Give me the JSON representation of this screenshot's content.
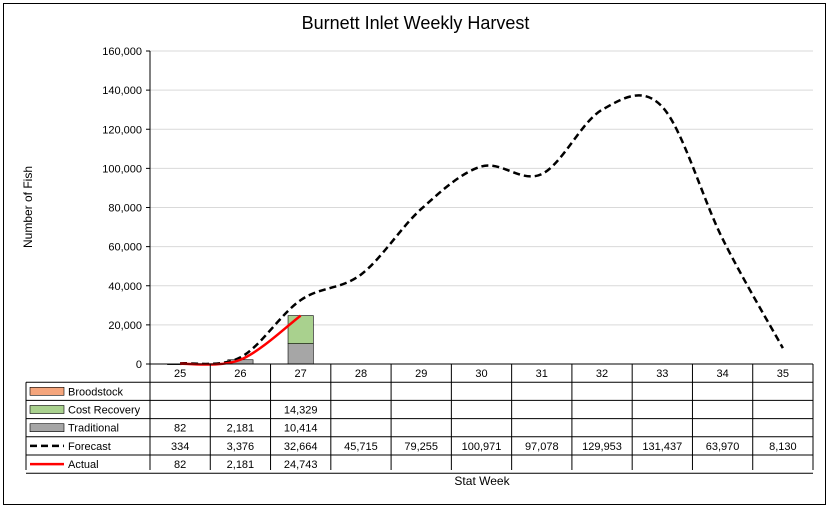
{
  "chart_data": {
    "type": "bar",
    "title": "Burnett Inlet Weekly Harvest",
    "xlabel": "Stat Week",
    "ylabel": "Number of Fish",
    "ylim": [
      0,
      160000
    ],
    "yticks": [
      "0",
      "20,000",
      "40,000",
      "60,000",
      "80,000",
      "100,000",
      "120,000",
      "140,000",
      "160,000"
    ],
    "grid": true,
    "categories": [
      "25",
      "26",
      "27",
      "28",
      "29",
      "30",
      "31",
      "32",
      "33",
      "34",
      "35"
    ],
    "series": [
      {
        "name": "Broodstock",
        "kind": "stacked-bar",
        "color": "#f4a57c",
        "values": [
          null,
          null,
          null,
          null,
          null,
          null,
          null,
          null,
          null,
          null,
          null
        ],
        "labels": [
          "",
          "",
          "",
          "",
          "",
          "",
          "",
          "",
          "",
          "",
          ""
        ]
      },
      {
        "name": "Cost Recovery",
        "kind": "stacked-bar",
        "color": "#a9d18e",
        "values": [
          null,
          null,
          14329,
          null,
          null,
          null,
          null,
          null,
          null,
          null,
          null
        ],
        "labels": [
          "",
          "",
          "14,329",
          "",
          "",
          "",
          "",
          "",
          "",
          "",
          ""
        ]
      },
      {
        "name": "Traditional",
        "kind": "stacked-bar",
        "color": "#a6a6a6",
        "values": [
          82,
          2181,
          10414,
          null,
          null,
          null,
          null,
          null,
          null,
          null,
          null
        ],
        "labels": [
          "82",
          "2,181",
          "10,414",
          "",
          "",
          "",
          "",
          "",
          "",
          "",
          ""
        ]
      },
      {
        "name": "Forecast",
        "kind": "dashed-line",
        "color": "#000000",
        "values": [
          334,
          3376,
          32664,
          45715,
          79255,
          100971,
          97078,
          129953,
          131437,
          63970,
          8130
        ],
        "labels": [
          "334",
          "3,376",
          "32,664",
          "45,715",
          "79,255",
          "100,971",
          "97,078",
          "129,953",
          "131,437",
          "63,970",
          "8,130"
        ]
      },
      {
        "name": "Actual",
        "kind": "line",
        "color": "#ff0000",
        "values": [
          82,
          2181,
          24743,
          null,
          null,
          null,
          null,
          null,
          null,
          null,
          null
        ],
        "labels": [
          "82",
          "2,181",
          "24,743",
          "",
          "",
          "",
          "",
          "",
          "",
          "",
          ""
        ]
      }
    ]
  }
}
